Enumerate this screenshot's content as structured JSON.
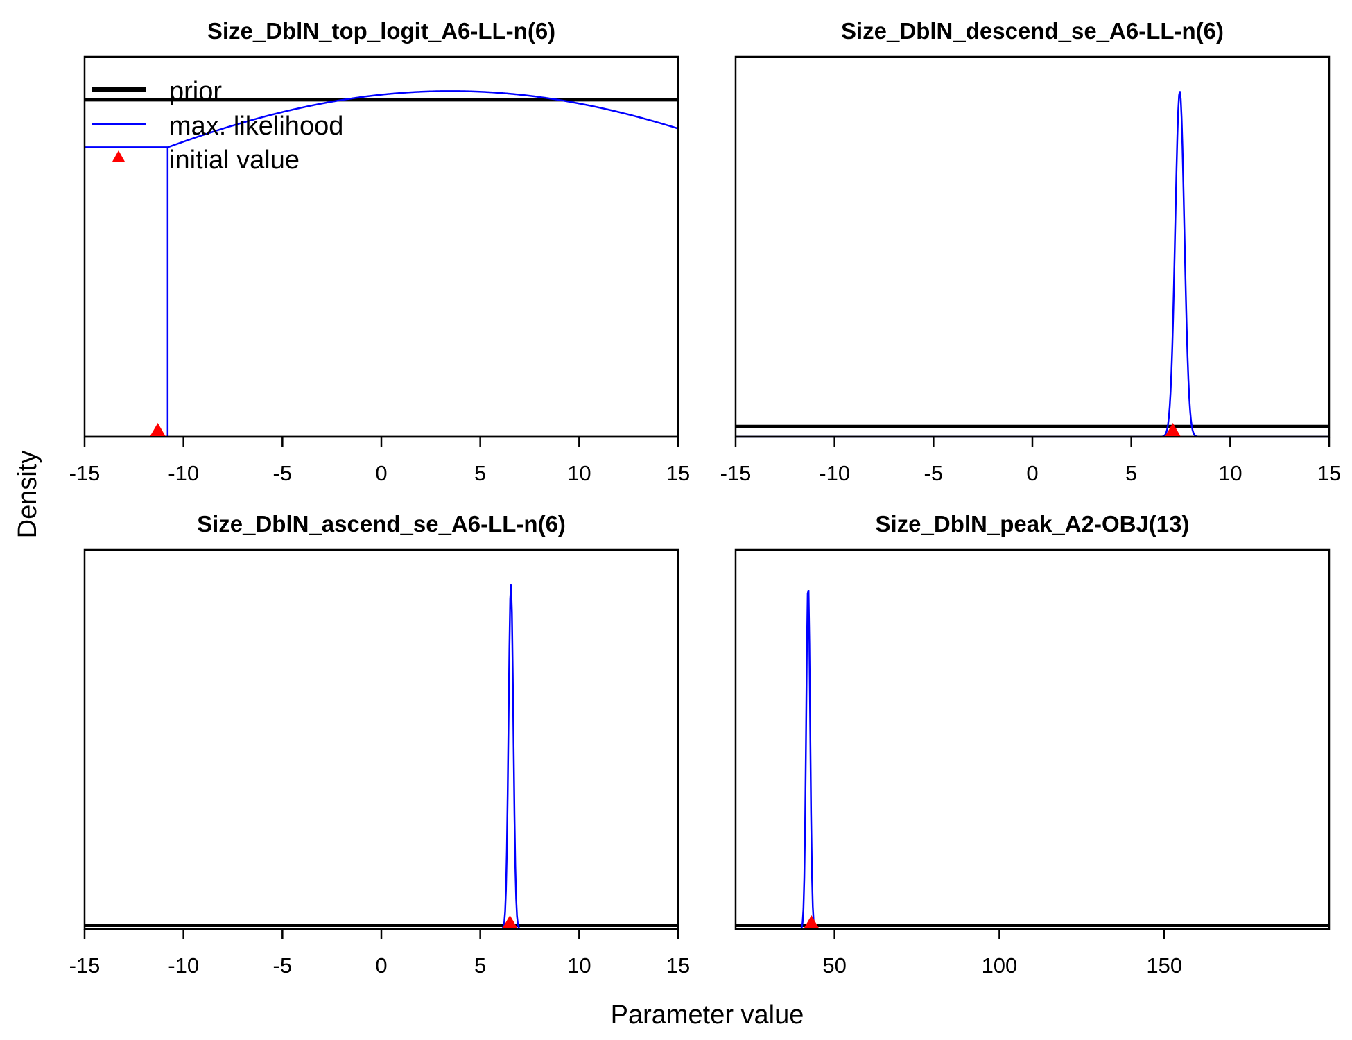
{
  "figure": {
    "ylabel": "Density",
    "xlabel": "Parameter value"
  },
  "legend": {
    "items": [
      {
        "label": "prior",
        "kind": "line",
        "color": "#000000"
      },
      {
        "label": "max. likelihood",
        "kind": "line",
        "color": "#0000ff"
      },
      {
        "label": "initial value",
        "kind": "triangle",
        "color": "#ff0000"
      }
    ]
  },
  "colors": {
    "prior": "#000000",
    "max_likelihood": "#0000ff",
    "initial_value": "#ff0000"
  },
  "chart_data": [
    {
      "type": "line",
      "title": "Size_DblN_top_logit_A6-LL-n(6)",
      "xlim": [
        -15,
        15
      ],
      "ticks": [
        -15,
        -10,
        -5,
        0,
        5,
        10,
        15
      ],
      "tick_labels": [
        "-15",
        "-10",
        "-5",
        "0",
        "5",
        "10",
        "15"
      ],
      "prior": {
        "shape": "flat",
        "level": 0.887
      },
      "max_likelihood": {
        "shape": "step_normal",
        "lower_bound": -10.8,
        "mean": 3.5,
        "sd": 24,
        "peak_level": 0.91
      },
      "initial_value": -11.3,
      "legend": "top-left"
    },
    {
      "type": "line",
      "title": "Size_DblN_descend_se_A6-LL-n(6)",
      "xlim": [
        -15,
        15
      ],
      "ticks": [
        -15,
        -10,
        -5,
        0,
        5,
        10,
        15
      ],
      "tick_labels": [
        "-15",
        "-10",
        "-5",
        "0",
        "5",
        "10",
        "15"
      ],
      "prior": {
        "shape": "flat",
        "level": 0.027
      },
      "max_likelihood": {
        "shape": "normal",
        "mean": 7.45,
        "sd": 0.23,
        "peak_level": 0.91
      },
      "initial_value": 7.1
    },
    {
      "type": "line",
      "title": "Size_DblN_ascend_se_A6-LL-n(6)",
      "xlim": [
        -15,
        15
      ],
      "ticks": [
        -15,
        -10,
        -5,
        0,
        5,
        10,
        15
      ],
      "tick_labels": [
        "-15",
        "-10",
        "-5",
        "0",
        "5",
        "10",
        "15"
      ],
      "prior": {
        "shape": "flat",
        "level": 0.01
      },
      "max_likelihood": {
        "shape": "normal",
        "mean": 6.55,
        "sd": 0.12,
        "peak_level": 0.91
      },
      "initial_value": 6.5
    },
    {
      "type": "line",
      "title": "Size_DblN_peak_A2-OBJ(13)",
      "xlim": [
        20,
        200
      ],
      "ticks": [
        50,
        100,
        150
      ],
      "tick_labels": [
        "50",
        "100",
        "150"
      ],
      "prior": {
        "shape": "flat",
        "level": 0.01
      },
      "max_likelihood": {
        "shape": "normal",
        "mean": 42,
        "sd": 0.6,
        "peak_level": 0.91
      },
      "initial_value": 43
    }
  ]
}
